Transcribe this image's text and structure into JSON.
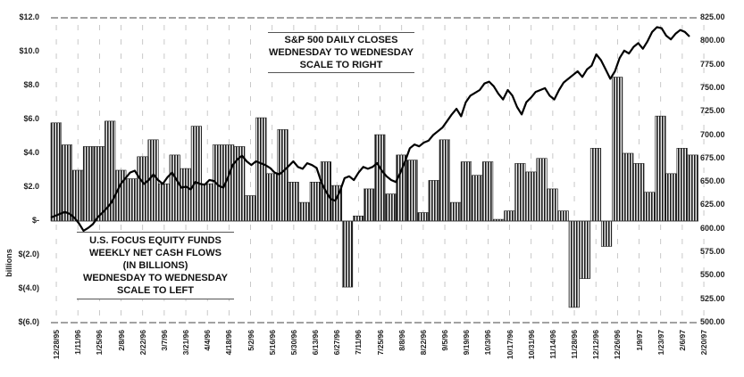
{
  "chart_data": {
    "type": "bar+line",
    "title": "",
    "ylabel_left": "billions",
    "ylabel_right": "",
    "left_axis": {
      "ylim": [
        -6.0,
        12.0
      ],
      "ticks": [
        "$12.0",
        "$10.0",
        "$8.0",
        "$6.0",
        "$4.0",
        "$2.0",
        "$-",
        "$(2.0)",
        "$(4.0)",
        "$(6.0)"
      ],
      "tick_values": [
        12,
        10,
        8,
        6,
        4,
        2,
        0,
        -2,
        -4,
        -6
      ]
    },
    "right_axis": {
      "ylim": [
        500,
        825
      ],
      "ticks": [
        "825.00",
        "800.00",
        "775.00",
        "750.00",
        "725.00",
        "700.00",
        "675.00",
        "650.00",
        "625.00",
        "600.00",
        "575.00",
        "550.00",
        "525.00",
        "500.00"
      ],
      "tick_values": [
        825,
        800,
        775,
        750,
        725,
        700,
        675,
        650,
        625,
        600,
        575,
        550,
        525,
        500
      ]
    },
    "x_tick_labels": [
      "12/28/95",
      "1/11/96",
      "1/25/96",
      "2/8/96",
      "2/22/96",
      "3/7/96",
      "3/21/96",
      "4/4/96",
      "4/18/96",
      "5/2/96",
      "5/16/96",
      "5/30/96",
      "6/13/96",
      "6/27/96",
      "7/11/96",
      "7/25/96",
      "8/8/96",
      "8/22/96",
      "9/5/96",
      "9/19/96",
      "10/3/96",
      "10/17/96",
      "10/31/96",
      "11/14/96",
      "11/28/96",
      "12/12/96",
      "12/26/96",
      "1/9/97",
      "1/23/97",
      "2/6/97",
      "2/20/97"
    ],
    "annotations": [
      {
        "lines": [
          "S&P 500 DAILY CLOSES",
          "WEDNESDAY TO WEDNESDAY",
          "SCALE TO RIGHT"
        ]
      },
      {
        "lines": [
          "U.S. FOCUS EQUITY FUNDS",
          "WEEKLY NET CASH FLOWS",
          "(IN BILLIONS)",
          "WEDNESDAY TO WEDNESDAY",
          "SCALE TO LEFT"
        ]
      }
    ],
    "series": [
      {
        "name": "U.S. Focus Equity Funds Weekly Net Cash Flows (billions)",
        "type": "bar",
        "axis": "left",
        "values": [
          5.8,
          4.5,
          3.0,
          4.4,
          4.4,
          5.9,
          3.0,
          2.5,
          3.8,
          4.8,
          2.2,
          3.9,
          3.1,
          5.6,
          2.2,
          4.5,
          4.5,
          4.4,
          1.5,
          6.1,
          2.8,
          5.4,
          2.3,
          1.1,
          2.3,
          3.5,
          2.1,
          -3.9,
          0.3,
          1.9,
          5.1,
          1.6,
          3.9,
          3.6,
          0.5,
          2.4,
          4.8,
          1.1,
          3.5,
          2.7,
          3.5,
          0.1,
          0.6,
          3.4,
          2.9,
          3.7,
          1.9,
          0.6,
          -5.1,
          -3.4,
          4.3,
          -1.5,
          8.5,
          4.0,
          3.4,
          1.7,
          6.2,
          2.8,
          4.3,
          3.9
        ]
      },
      {
        "name": "S&P 500 Daily Closes",
        "type": "line",
        "axis": "right",
        "values": [
          612,
          614,
          616,
          618,
          616,
          612,
          606,
          598,
          601,
          605,
          612,
          617,
          622,
          628,
          638,
          648,
          654,
          660,
          662,
          654,
          648,
          652,
          658,
          652,
          648,
          655,
          660,
          652,
          644,
          645,
          642,
          650,
          648,
          647,
          652,
          651,
          646,
          644,
          655,
          668,
          674,
          678,
          672,
          668,
          672,
          670,
          668,
          665,
          660,
          658,
          662,
          667,
          672,
          666,
          664,
          670,
          668,
          665,
          650,
          640,
          632,
          630,
          640,
          654,
          656,
          652,
          660,
          666,
          664,
          666,
          670,
          662,
          656,
          652,
          650,
          660,
          672,
          686,
          690,
          688,
          692,
          694,
          700,
          704,
          708,
          715,
          722,
          728,
          720,
          735,
          742,
          745,
          748,
          755,
          757,
          752,
          744,
          738,
          748,
          742,
          730,
          722,
          735,
          740,
          746,
          748,
          750,
          742,
          738,
          748,
          756,
          760,
          764,
          768,
          762,
          770,
          774,
          786,
          780,
          770,
          760,
          768,
          782,
          790,
          787,
          794,
          798,
          792,
          800,
          810,
          815,
          814,
          806,
          802,
          808,
          812,
          810,
          805
        ]
      }
    ],
    "legend": "none",
    "grid": "dashed vertical lines"
  }
}
